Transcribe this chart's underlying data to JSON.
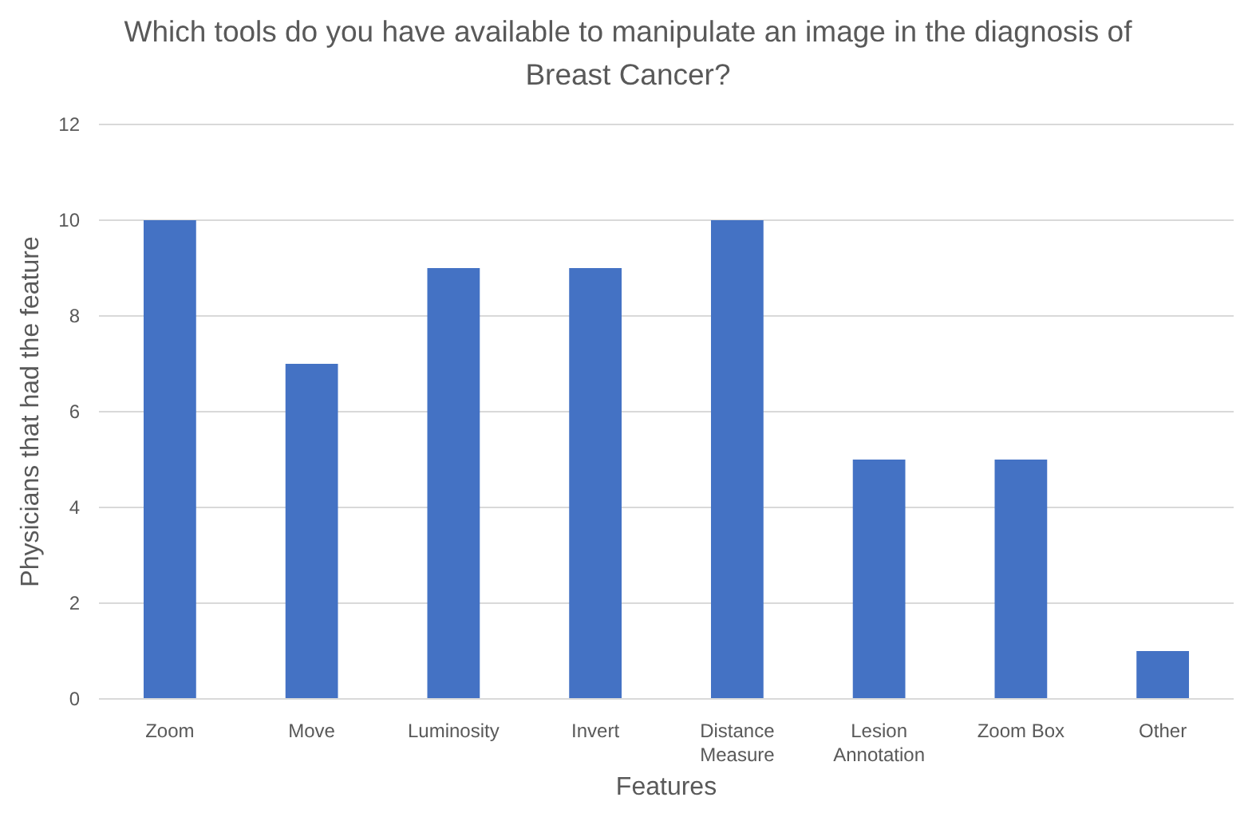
{
  "chart_data": {
    "type": "bar",
    "title": "Which tools do you have available to manipulate an image in the diagnosis of Breast Cancer?",
    "xlabel": "Features",
    "ylabel": "Physicians that had the feature",
    "categories": [
      "Zoom",
      "Move",
      "Luminosity",
      "Invert",
      "Distance Measure",
      "Lesion Annotation",
      "Zoom Box",
      "Other"
    ],
    "values": [
      10,
      7,
      9,
      9,
      10,
      5,
      5,
      1
    ],
    "color": "#4472c4",
    "ylim": [
      0,
      12
    ],
    "yticks": [
      0,
      2,
      4,
      6,
      8,
      10,
      12
    ],
    "grid": "y"
  }
}
